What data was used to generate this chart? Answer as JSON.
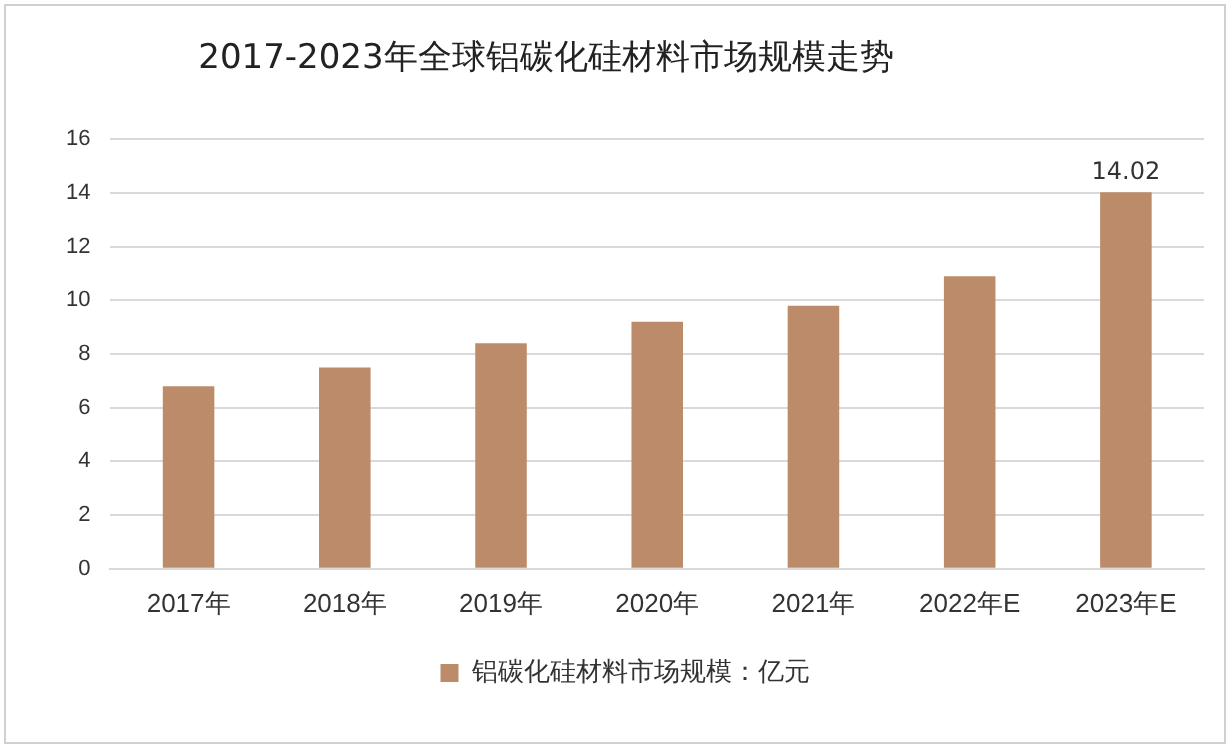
{
  "chart_data": {
    "type": "bar",
    "title": "2017-2023年全球铝碳化硅材料市场规模走势",
    "categories": [
      "2017年",
      "2018年",
      "2019年",
      "2020年",
      "2021年",
      "2022年E",
      "2023年E"
    ],
    "series": [
      {
        "name": "铝碳化硅材料市场规模：亿元",
        "color": "#bc8c6a",
        "values": [
          6.8,
          7.5,
          8.4,
          9.2,
          9.8,
          10.9,
          14.02
        ],
        "value_labels": [
          null,
          null,
          null,
          null,
          null,
          null,
          "14.02"
        ]
      }
    ],
    "ylim": [
      0,
      16
    ],
    "yticks": [
      0,
      2,
      4,
      6,
      8,
      10,
      12,
      14,
      16
    ],
    "grid": "y",
    "legend": "bottom"
  }
}
